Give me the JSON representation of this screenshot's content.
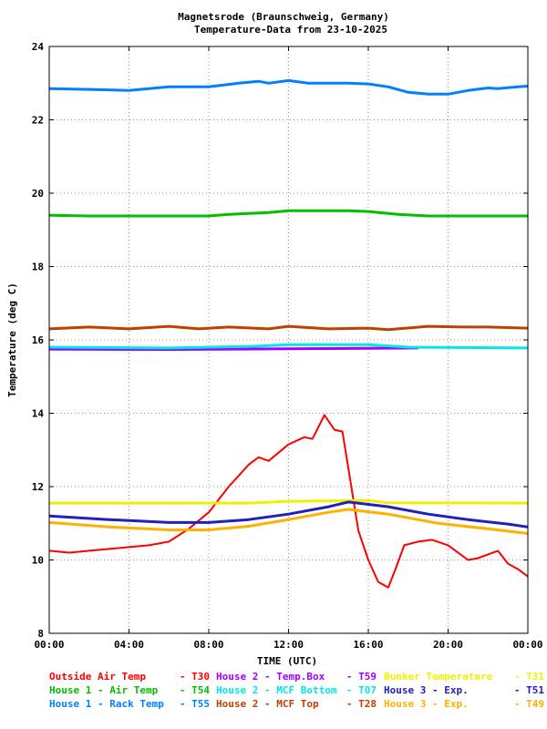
{
  "chart_data": {
    "type": "line",
    "title": "Magnetsrode (Braunschweig, Germany)",
    "subtitle": "Temperature-Data from 23-10-2025",
    "xlabel": "TIME (UTC)",
    "ylabel": "Temperature (deg C)",
    "xlim": [
      0,
      24
    ],
    "ylim": [
      8,
      24
    ],
    "grid": true,
    "x_ticks": [
      {
        "v": 0,
        "label": "00:00"
      },
      {
        "v": 4,
        "label": "04:00"
      },
      {
        "v": 8,
        "label": "08:00"
      },
      {
        "v": 12,
        "label": "12:00"
      },
      {
        "v": 16,
        "label": "16:00"
      },
      {
        "v": 20,
        "label": "20:00"
      },
      {
        "v": 24,
        "label": "00:00"
      }
    ],
    "y_ticks": [
      8,
      10,
      12,
      14,
      16,
      18,
      20,
      22,
      24
    ],
    "series": [
      {
        "name": "Outside Air Temp",
        "code": "- T30",
        "color": "#ff0000",
        "points": [
          [
            0,
            10.25
          ],
          [
            1,
            10.2
          ],
          [
            2,
            10.25
          ],
          [
            3,
            10.3
          ],
          [
            4,
            10.35
          ],
          [
            5,
            10.4
          ],
          [
            6,
            10.5
          ],
          [
            7,
            10.85
          ],
          [
            8,
            11.3
          ],
          [
            9,
            12.0
          ],
          [
            10,
            12.6
          ],
          [
            10.5,
            12.8
          ],
          [
            11,
            12.7
          ],
          [
            12,
            13.15
          ],
          [
            12.8,
            13.35
          ],
          [
            13.2,
            13.3
          ],
          [
            13.8,
            13.95
          ],
          [
            14.3,
            13.55
          ],
          [
            14.7,
            13.5
          ],
          [
            15,
            12.5
          ],
          [
            15.5,
            10.8
          ],
          [
            16,
            10.0
          ],
          [
            16.5,
            9.4
          ],
          [
            17,
            9.25
          ],
          [
            17.4,
            9.8
          ],
          [
            17.8,
            10.4
          ],
          [
            18.5,
            10.5
          ],
          [
            19.2,
            10.55
          ],
          [
            20,
            10.4
          ],
          [
            21,
            10.0
          ],
          [
            21.5,
            10.05
          ],
          [
            22.5,
            10.25
          ],
          [
            23,
            9.9
          ],
          [
            23.5,
            9.75
          ],
          [
            24,
            9.55
          ]
        ]
      },
      {
        "name": "House 2 - Temp.Box",
        "code": "- T59",
        "color": "#a000ff",
        "points": [
          [
            0,
            15.75
          ],
          [
            6,
            15.74
          ],
          [
            12,
            15.76
          ],
          [
            18.5,
            15.78
          ]
        ]
      },
      {
        "name": "Bunker Temperature",
        "code": "- T31",
        "color": "#f0f000",
        "points": [
          [
            0,
            11.55
          ],
          [
            10,
            11.55
          ],
          [
            12,
            11.6
          ],
          [
            16,
            11.62
          ],
          [
            17,
            11.56
          ],
          [
            24,
            11.55
          ]
        ]
      },
      {
        "name": "House 1 - Air  Temp",
        "code": "- T54",
        "color": "#00c000",
        "points": [
          [
            0,
            19.4
          ],
          [
            2,
            19.38
          ],
          [
            8,
            19.38
          ],
          [
            9,
            19.42
          ],
          [
            11,
            19.47
          ],
          [
            12,
            19.52
          ],
          [
            15,
            19.52
          ],
          [
            16,
            19.5
          ],
          [
            17.5,
            19.42
          ],
          [
            19,
            19.38
          ],
          [
            24,
            19.38
          ]
        ]
      },
      {
        "name": "House 2 - MCF Bottom",
        "code": "- T07",
        "color": "#00e8e8",
        "points": [
          [
            0,
            15.8
          ],
          [
            6,
            15.78
          ],
          [
            10,
            15.82
          ],
          [
            12,
            15.87
          ],
          [
            16,
            15.87
          ],
          [
            18,
            15.8
          ],
          [
            24,
            15.78
          ]
        ]
      },
      {
        "name": "House 3 - Exp.",
        "code": "- T51",
        "color": "#2020c0",
        "points": [
          [
            0,
            11.2
          ],
          [
            3,
            11.1
          ],
          [
            6,
            11.02
          ],
          [
            8,
            11.02
          ],
          [
            10,
            11.1
          ],
          [
            12,
            11.25
          ],
          [
            14,
            11.45
          ],
          [
            15,
            11.58
          ],
          [
            17,
            11.45
          ],
          [
            19,
            11.25
          ],
          [
            21,
            11.1
          ],
          [
            23,
            10.98
          ],
          [
            24,
            10.9
          ]
        ]
      },
      {
        "name": "House 1 - Rack Temp",
        "code": "- T55",
        "color": "#0080ff",
        "points": [
          [
            0,
            22.85
          ],
          [
            2,
            22.83
          ],
          [
            4,
            22.8
          ],
          [
            5,
            22.85
          ],
          [
            6,
            22.9
          ],
          [
            8,
            22.9
          ],
          [
            9.5,
            23.0
          ],
          [
            10.5,
            23.05
          ],
          [
            11,
            23.0
          ],
          [
            12,
            23.07
          ],
          [
            13,
            23.0
          ],
          [
            15,
            23.0
          ],
          [
            16,
            22.98
          ],
          [
            17,
            22.9
          ],
          [
            18,
            22.75
          ],
          [
            19,
            22.7
          ],
          [
            20,
            22.7
          ],
          [
            21,
            22.8
          ],
          [
            22,
            22.87
          ],
          [
            22.5,
            22.85
          ],
          [
            23.5,
            22.9
          ],
          [
            24,
            22.92
          ]
        ]
      },
      {
        "name": "House 2 - MCF Top",
        "code": "- T28",
        "color": "#c04000",
        "points": [
          [
            0,
            16.3
          ],
          [
            2,
            16.35
          ],
          [
            4,
            16.3
          ],
          [
            6,
            16.37
          ],
          [
            7.5,
            16.3
          ],
          [
            9,
            16.35
          ],
          [
            11,
            16.3
          ],
          [
            12,
            16.37
          ],
          [
            14,
            16.3
          ],
          [
            16,
            16.32
          ],
          [
            17,
            16.28
          ],
          [
            19,
            16.37
          ],
          [
            21,
            16.35
          ],
          [
            22,
            16.35
          ],
          [
            24,
            16.32
          ]
        ]
      },
      {
        "name": "House 3 - Exp.",
        "code": "- T49",
        "color": "#ffb000",
        "points": [
          [
            0,
            11.02
          ],
          [
            3,
            10.9
          ],
          [
            6,
            10.82
          ],
          [
            8,
            10.82
          ],
          [
            10,
            10.92
          ],
          [
            12,
            11.1
          ],
          [
            14,
            11.3
          ],
          [
            15,
            11.38
          ],
          [
            17,
            11.25
          ],
          [
            19.5,
            11.0
          ],
          [
            22,
            10.85
          ],
          [
            24,
            10.72
          ]
        ]
      }
    ]
  }
}
